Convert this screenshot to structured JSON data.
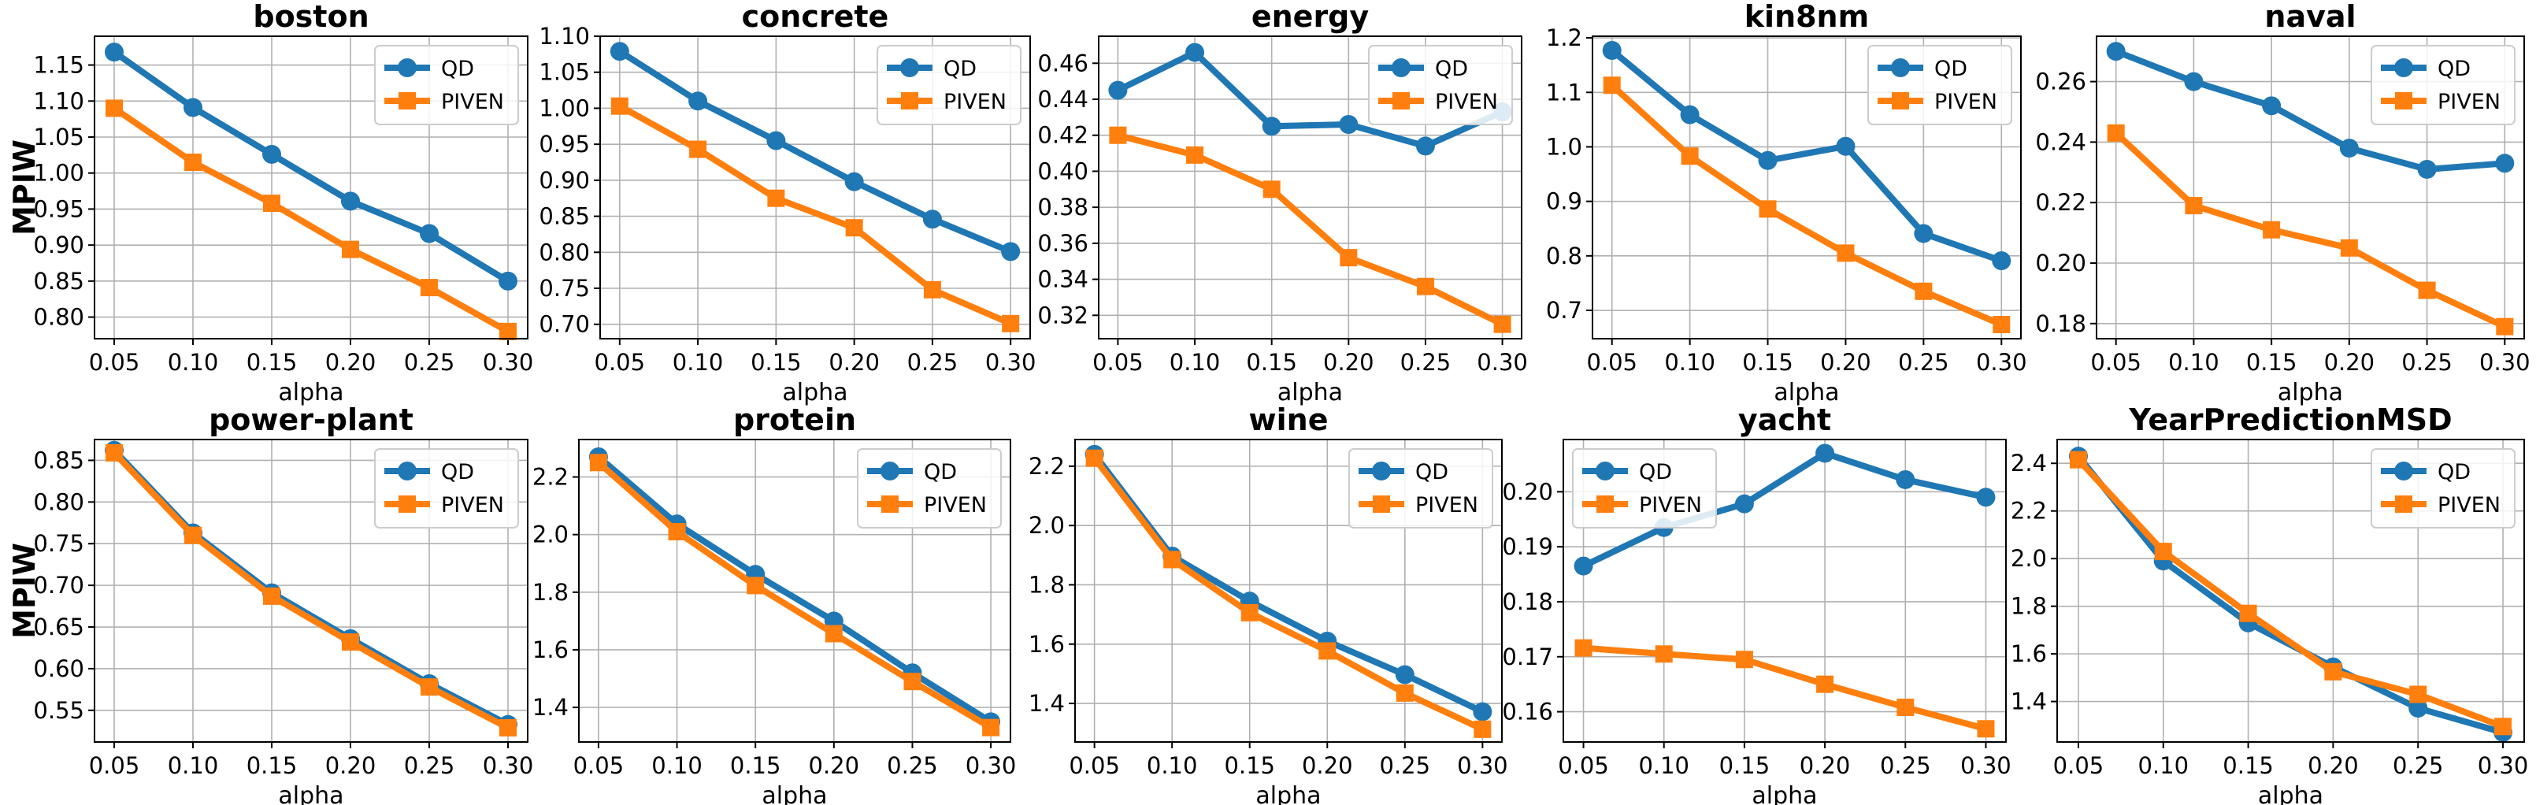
{
  "figure": {
    "series_names": [
      "QD",
      "PIVEN"
    ],
    "colors": {
      "QD": "#1f77b4",
      "PIVEN": "#ff7f0e"
    },
    "markers": {
      "QD": "circle",
      "PIVEN": "square"
    }
  },
  "chart_data": [
    {
      "type": "line",
      "title": "boston",
      "xlabel": "alpha",
      "ylabel": "MPIW",
      "x": [
        0.05,
        0.1,
        0.15,
        0.2,
        0.25,
        0.3
      ],
      "x_ticks": [
        "0.05",
        "0.10",
        "0.15",
        "0.20",
        "0.25",
        "0.30"
      ],
      "ylim": [
        0.77,
        1.19
      ],
      "y_ticks": [
        "0.80",
        "0.85",
        "0.90",
        "0.95",
        "1.00",
        "1.05",
        "1.10",
        "1.15"
      ],
      "legend": "upper right",
      "series": [
        {
          "name": "QD",
          "values": [
            1.168,
            1.091,
            1.026,
            0.961,
            0.916,
            0.85
          ]
        },
        {
          "name": "PIVEN",
          "values": [
            1.09,
            1.015,
            0.958,
            0.894,
            0.841,
            0.78
          ]
        }
      ]
    },
    {
      "type": "line",
      "title": "concrete",
      "xlabel": "alpha",
      "ylabel": "",
      "x": [
        0.05,
        0.1,
        0.15,
        0.2,
        0.25,
        0.3
      ],
      "x_ticks": [
        "0.05",
        "0.10",
        "0.15",
        "0.20",
        "0.25",
        "0.30"
      ],
      "ylim": [
        0.68,
        1.1
      ],
      "y_ticks": [
        "0.70",
        "0.75",
        "0.80",
        "0.85",
        "0.90",
        "0.95",
        "1.00",
        "1.05",
        "1.10"
      ],
      "legend": "upper right",
      "series": [
        {
          "name": "QD",
          "values": [
            1.079,
            1.01,
            0.955,
            0.898,
            0.846,
            0.801
          ]
        },
        {
          "name": "PIVEN",
          "values": [
            1.003,
            0.943,
            0.875,
            0.834,
            0.748,
            0.701
          ]
        }
      ]
    },
    {
      "type": "line",
      "title": "energy",
      "xlabel": "alpha",
      "ylabel": "",
      "x": [
        0.05,
        0.1,
        0.15,
        0.2,
        0.25,
        0.3
      ],
      "x_ticks": [
        "0.05",
        "0.10",
        "0.15",
        "0.20",
        "0.25",
        "0.30"
      ],
      "ylim": [
        0.307,
        0.475
      ],
      "y_ticks": [
        "0.32",
        "0.34",
        "0.36",
        "0.38",
        "0.40",
        "0.42",
        "0.44",
        "0.46"
      ],
      "legend": "upper right",
      "series": [
        {
          "name": "QD",
          "values": [
            0.445,
            0.466,
            0.425,
            0.426,
            0.414,
            0.433
          ]
        },
        {
          "name": "PIVEN",
          "values": [
            0.42,
            0.409,
            0.39,
            0.352,
            0.336,
            0.315
          ]
        }
      ]
    },
    {
      "type": "line",
      "title": "kin8nm",
      "xlabel": "alpha",
      "ylabel": "",
      "x": [
        0.05,
        0.1,
        0.15,
        0.2,
        0.25,
        0.3
      ],
      "x_ticks": [
        "0.05",
        "0.10",
        "0.15",
        "0.20",
        "0.25",
        "0.30"
      ],
      "ylim": [
        0.648,
        1.203
      ],
      "y_ticks": [
        "0.7",
        "0.8",
        "0.9",
        "1.0",
        "1.1",
        "1.2"
      ],
      "legend": "upper right",
      "series": [
        {
          "name": "QD",
          "values": [
            1.177,
            1.059,
            0.975,
            1.001,
            0.841,
            0.791
          ]
        },
        {
          "name": "PIVEN",
          "values": [
            1.113,
            0.983,
            0.886,
            0.805,
            0.735,
            0.674
          ]
        }
      ]
    },
    {
      "type": "line",
      "title": "naval",
      "xlabel": "alpha",
      "ylabel": "",
      "x": [
        0.05,
        0.1,
        0.15,
        0.2,
        0.25,
        0.3
      ],
      "x_ticks": [
        "0.05",
        "0.10",
        "0.15",
        "0.20",
        "0.25",
        "0.30"
      ],
      "ylim": [
        0.175,
        0.275
      ],
      "y_ticks": [
        "0.18",
        "0.20",
        "0.22",
        "0.24",
        "0.26"
      ],
      "legend": "upper right",
      "series": [
        {
          "name": "QD",
          "values": [
            0.27,
            0.26,
            0.252,
            0.238,
            0.231,
            0.233
          ]
        },
        {
          "name": "PIVEN",
          "values": [
            0.243,
            0.219,
            0.211,
            0.205,
            0.191,
            0.179
          ]
        }
      ]
    },
    {
      "type": "line",
      "title": "power-plant",
      "xlabel": "alpha",
      "ylabel": "MPIW",
      "x": [
        0.05,
        0.1,
        0.15,
        0.2,
        0.25,
        0.3
      ],
      "x_ticks": [
        "0.05",
        "0.10",
        "0.15",
        "0.20",
        "0.25",
        "0.30"
      ],
      "ylim": [
        0.512,
        0.875
      ],
      "y_ticks": [
        "0.55",
        "0.60",
        "0.65",
        "0.70",
        "0.75",
        "0.80",
        "0.85"
      ],
      "legend": "upper right",
      "series": [
        {
          "name": "QD",
          "values": [
            0.862,
            0.763,
            0.691,
            0.636,
            0.582,
            0.533
          ]
        },
        {
          "name": "PIVEN",
          "values": [
            0.859,
            0.76,
            0.687,
            0.632,
            0.578,
            0.529
          ]
        }
      ]
    },
    {
      "type": "line",
      "title": "protein",
      "xlabel": "alpha",
      "ylabel": "",
      "x": [
        0.05,
        0.1,
        0.15,
        0.2,
        0.25,
        0.3
      ],
      "x_ticks": [
        "0.05",
        "0.10",
        "0.15",
        "0.20",
        "0.25",
        "0.30"
      ],
      "ylim": [
        1.28,
        2.33
      ],
      "y_ticks": [
        "1.4",
        "1.6",
        "1.8",
        "2.0",
        "2.2"
      ],
      "legend": "upper right",
      "series": [
        {
          "name": "QD",
          "values": [
            2.27,
            2.037,
            1.862,
            1.7,
            1.52,
            1.35
          ]
        },
        {
          "name": "PIVEN",
          "values": [
            2.25,
            2.01,
            1.823,
            1.656,
            1.49,
            1.33
          ]
        }
      ]
    },
    {
      "type": "line",
      "title": "wine",
      "xlabel": "alpha",
      "ylabel": "",
      "x": [
        0.05,
        0.1,
        0.15,
        0.2,
        0.25,
        0.3
      ],
      "x_ticks": [
        "0.05",
        "0.10",
        "0.15",
        "0.20",
        "0.25",
        "0.30"
      ],
      "ylim": [
        1.27,
        2.29
      ],
      "y_ticks": [
        "1.4",
        "1.6",
        "1.8",
        "2.0",
        "2.2"
      ],
      "legend": "upper right",
      "series": [
        {
          "name": "QD",
          "values": [
            2.24,
            1.897,
            1.745,
            1.61,
            1.497,
            1.372
          ]
        },
        {
          "name": "PIVEN",
          "values": [
            2.227,
            1.885,
            1.706,
            1.577,
            1.435,
            1.313
          ]
        }
      ]
    },
    {
      "type": "line",
      "title": "yacht",
      "xlabel": "alpha",
      "ylabel": "",
      "x": [
        0.05,
        0.1,
        0.15,
        0.2,
        0.25,
        0.3
      ],
      "x_ticks": [
        "0.05",
        "0.10",
        "0.15",
        "0.20",
        "0.25",
        "0.30"
      ],
      "ylim": [
        0.1545,
        0.2095
      ],
      "y_ticks": [
        "0.16",
        "0.17",
        "0.18",
        "0.19",
        "0.20"
      ],
      "legend": "upper left",
      "series": [
        {
          "name": "QD",
          "values": [
            0.1865,
            0.1935,
            0.1978,
            0.207,
            0.2022,
            0.199
          ]
        },
        {
          "name": "PIVEN",
          "values": [
            0.1716,
            0.1705,
            0.1695,
            0.165,
            0.1608,
            0.1569
          ]
        }
      ]
    },
    {
      "type": "line",
      "title": "YearPredictionMSD",
      "xlabel": "alpha",
      "ylabel": "",
      "x": [
        0.05,
        0.1,
        0.15,
        0.2,
        0.25,
        0.3
      ],
      "x_ticks": [
        "0.05",
        "0.10",
        "0.15",
        "0.20",
        "0.25",
        "0.30"
      ],
      "ylim": [
        1.23,
        2.5
      ],
      "y_ticks": [
        "1.4",
        "1.6",
        "1.8",
        "2.0",
        "2.2",
        "2.4"
      ],
      "legend": "upper right",
      "series": [
        {
          "name": "QD",
          "values": [
            2.43,
            1.99,
            1.73,
            1.545,
            1.372,
            1.27
          ]
        },
        {
          "name": "PIVEN",
          "values": [
            2.415,
            2.03,
            1.77,
            1.525,
            1.43,
            1.295
          ]
        }
      ]
    }
  ]
}
